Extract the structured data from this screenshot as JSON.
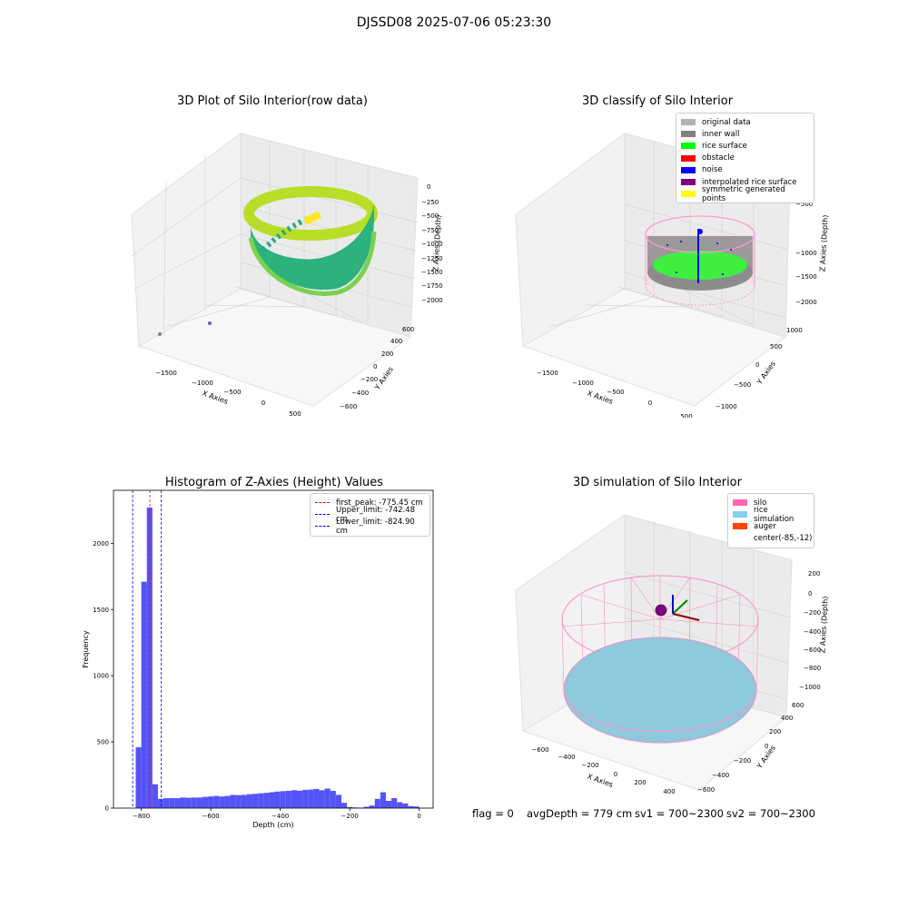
{
  "figure": {
    "suptitle": "DJSSD08 2025-07-06 05:23:30",
    "footer": {
      "flag": "flag = 0",
      "avg_depth": "avgDepth = 779 cm",
      "sv1": "sv1 = 700~2300",
      "sv2": "sv2 = 700~2300"
    }
  },
  "chart_data": [
    {
      "type": "scatter3d",
      "title": "3D Plot of Silo Interior(row data)",
      "xlabel": "X Axies",
      "ylabel": "Y Axies",
      "zlabel": "Z Axies (Depth)",
      "x_ticks": [
        "−1500",
        "−1000",
        "−500",
        "0",
        "500"
      ],
      "y_ticks": [
        "−600",
        "−400",
        "−200",
        "0",
        "200",
        "400",
        "600"
      ],
      "z_ticks": [
        "0",
        "−250",
        "−500",
        "−750",
        "−1000",
        "−1250",
        "−1500",
        "−1750",
        "−2000"
      ],
      "xlim": [
        -1800,
        600
      ],
      "ylim": [
        -650,
        700
      ],
      "zlim": [
        -2100,
        50
      ],
      "colormap": "viridis",
      "description_points": "elliptical ring of points at depth ~-750 to -1250, outliers near (-1650,-650) and (-1100,-500)"
    },
    {
      "type": "scatter3d",
      "title": "3D classify of Silo Interior",
      "xlabel": "X Axies",
      "ylabel": "Y Axies",
      "zlabel": "Z Axies (Depth)",
      "x_ticks": [
        "−1500",
        "−1000",
        "−500",
        "0",
        "500"
      ],
      "y_ticks": [
        "−1000",
        "−500",
        "0",
        "500",
        "1000"
      ],
      "z_ticks": [
        "−500",
        "−1000",
        "−1500",
        "−2000"
      ],
      "legend": [
        {
          "label": "original data",
          "color": "#b3b3b3"
        },
        {
          "label": "inner wall",
          "color": "#808080"
        },
        {
          "label": "rice surface",
          "color": "#00ff00"
        },
        {
          "label": "obstacle",
          "color": "#ff0000"
        },
        {
          "label": "noise",
          "color": "#0000ff"
        },
        {
          "label": "interpolated rice surface",
          "color": "#800080"
        },
        {
          "label": "symmetric generated points",
          "color": "#ffff00"
        }
      ]
    },
    {
      "type": "bar",
      "title": "Histogram of Z-Axies (Height) Values",
      "xlabel": "Depth (cm)",
      "ylabel": "Frequency",
      "xlim": [
        -880,
        40
      ],
      "ylim": [
        0,
        2400
      ],
      "x_ticks": [
        -800,
        -600,
        -400,
        -200,
        0
      ],
      "x_tick_labels": [
        "−800",
        "−600",
        "−400",
        "−200",
        "0"
      ],
      "y_ticks": [
        0,
        500,
        1000,
        1500,
        2000
      ],
      "y_tick_labels": [
        "0",
        "500",
        "1000",
        "1500",
        "2000"
      ],
      "bar_color": "#4b4bf5",
      "bin_width": 16,
      "bins": [
        {
          "x": -816,
          "value": 460
        },
        {
          "x": -800,
          "value": 1710
        },
        {
          "x": -784,
          "value": 2270
        },
        {
          "x": -768,
          "value": 180
        },
        {
          "x": -752,
          "value": 70
        },
        {
          "x": -736,
          "value": 75
        },
        {
          "x": -720,
          "value": 75
        },
        {
          "x": -704,
          "value": 75
        },
        {
          "x": -688,
          "value": 80
        },
        {
          "x": -672,
          "value": 78
        },
        {
          "x": -656,
          "value": 80
        },
        {
          "x": -640,
          "value": 80
        },
        {
          "x": -624,
          "value": 85
        },
        {
          "x": -608,
          "value": 88
        },
        {
          "x": -592,
          "value": 92
        },
        {
          "x": -576,
          "value": 88
        },
        {
          "x": -560,
          "value": 92
        },
        {
          "x": -544,
          "value": 100
        },
        {
          "x": -528,
          "value": 98
        },
        {
          "x": -512,
          "value": 100
        },
        {
          "x": -496,
          "value": 105
        },
        {
          "x": -480,
          "value": 108
        },
        {
          "x": -464,
          "value": 112
        },
        {
          "x": -448,
          "value": 115
        },
        {
          "x": -432,
          "value": 120
        },
        {
          "x": -416,
          "value": 125
        },
        {
          "x": -400,
          "value": 128
        },
        {
          "x": -384,
          "value": 130
        },
        {
          "x": -368,
          "value": 135
        },
        {
          "x": -352,
          "value": 132
        },
        {
          "x": -336,
          "value": 138
        },
        {
          "x": -320,
          "value": 140
        },
        {
          "x": -304,
          "value": 145
        },
        {
          "x": -288,
          "value": 135
        },
        {
          "x": -272,
          "value": 148
        },
        {
          "x": -256,
          "value": 130
        },
        {
          "x": -240,
          "value": 100
        },
        {
          "x": -224,
          "value": 40
        },
        {
          "x": -208,
          "value": 8
        },
        {
          "x": -192,
          "value": 5
        },
        {
          "x": -176,
          "value": 3
        },
        {
          "x": -160,
          "value": 10
        },
        {
          "x": -144,
          "value": 20
        },
        {
          "x": -128,
          "value": 70
        },
        {
          "x": -112,
          "value": 120
        },
        {
          "x": -96,
          "value": 55
        },
        {
          "x": -80,
          "value": 75
        },
        {
          "x": -64,
          "value": 45
        },
        {
          "x": -48,
          "value": 35
        },
        {
          "x": -32,
          "value": 15
        },
        {
          "x": -16,
          "value": 12
        }
      ],
      "vlines": [
        {
          "x": -775.45,
          "color": "#ff0000",
          "label": "first_peak: -775.45 cm"
        },
        {
          "x": -742.48,
          "color": "#0000ff",
          "label": "Upper_limit: -742.48 cm"
        },
        {
          "x": -824.9,
          "color": "#0000ff",
          "label": "Lower_limit: -824.90 cm"
        }
      ],
      "legend": [
        {
          "label": "first_peak: -775.45 cm",
          "color": "#ff0000"
        },
        {
          "label": "Upper_limit: -742.48 cm",
          "color": "#0000ff"
        },
        {
          "label": "Lower_limit: -824.90 cm",
          "color": "#0000ff"
        }
      ]
    },
    {
      "type": "surface3d",
      "title": "3D simulation of Silo Interior",
      "xlabel": "X Axies",
      "ylabel": "Y Axies",
      "zlabel": "Z Axies (Depth)",
      "x_ticks": [
        "−600",
        "−400",
        "−200",
        "0",
        "200",
        "400"
      ],
      "y_ticks": [
        "−600",
        "−400",
        "−200",
        "0",
        "200",
        "400",
        "600"
      ],
      "z_ticks": [
        "200",
        "0",
        "−200",
        "−400",
        "−600",
        "−800",
        "−1000"
      ],
      "legend": [
        {
          "label": "silo",
          "color": "#ff69b4"
        },
        {
          "label": "rice simulation",
          "color": "#87ceeb"
        },
        {
          "label": "auger",
          "color": "#ff4500"
        },
        {
          "label": "center(-85,-12)",
          "color": ""
        }
      ]
    }
  ]
}
